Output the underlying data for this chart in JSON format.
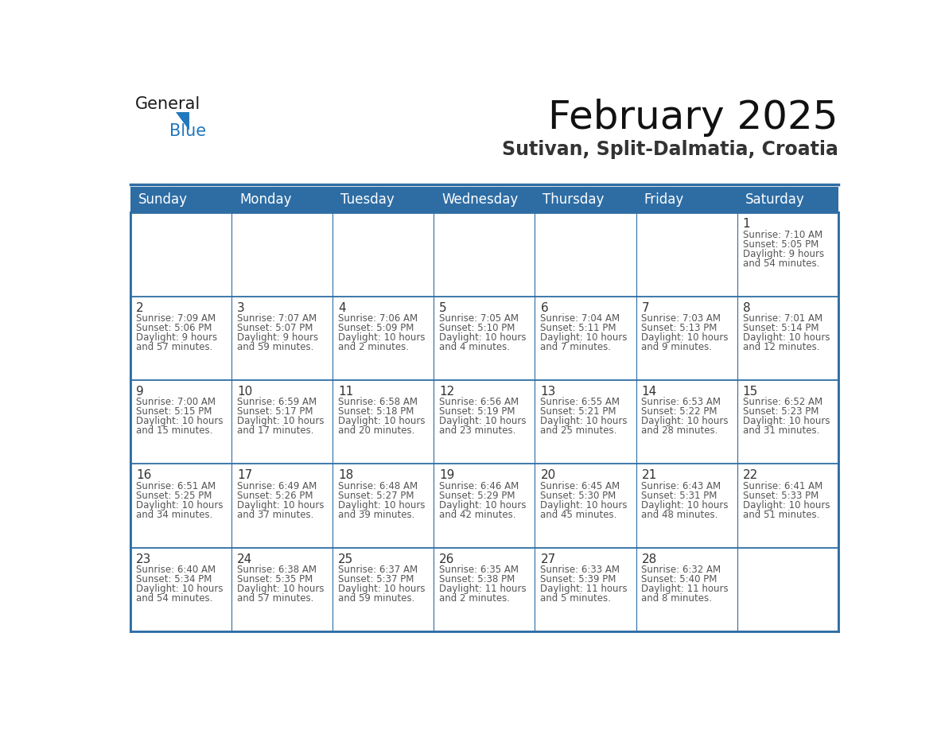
{
  "title": "February 2025",
  "subtitle": "Sutivan, Split-Dalmatia, Croatia",
  "header_bg": "#2E6DA4",
  "header_text": "#FFFFFF",
  "cell_bg": "#FFFFFF",
  "day_number_color": "#333333",
  "cell_text_color": "#555555",
  "grid_line_color": "#2E6DA4",
  "days_of_week": [
    "Sunday",
    "Monday",
    "Tuesday",
    "Wednesday",
    "Thursday",
    "Friday",
    "Saturday"
  ],
  "weeks": [
    [
      null,
      null,
      null,
      null,
      null,
      null,
      1
    ],
    [
      2,
      3,
      4,
      5,
      6,
      7,
      8
    ],
    [
      9,
      10,
      11,
      12,
      13,
      14,
      15
    ],
    [
      16,
      17,
      18,
      19,
      20,
      21,
      22
    ],
    [
      23,
      24,
      25,
      26,
      27,
      28,
      null
    ]
  ],
  "day_data": {
    "1": {
      "sunrise": "7:10 AM",
      "sunset": "5:05 PM",
      "daylight": "9 hours and 54 minutes."
    },
    "2": {
      "sunrise": "7:09 AM",
      "sunset": "5:06 PM",
      "daylight": "9 hours and 57 minutes."
    },
    "3": {
      "sunrise": "7:07 AM",
      "sunset": "5:07 PM",
      "daylight": "9 hours and 59 minutes."
    },
    "4": {
      "sunrise": "7:06 AM",
      "sunset": "5:09 PM",
      "daylight": "10 hours and 2 minutes."
    },
    "5": {
      "sunrise": "7:05 AM",
      "sunset": "5:10 PM",
      "daylight": "10 hours and 4 minutes."
    },
    "6": {
      "sunrise": "7:04 AM",
      "sunset": "5:11 PM",
      "daylight": "10 hours and 7 minutes."
    },
    "7": {
      "sunrise": "7:03 AM",
      "sunset": "5:13 PM",
      "daylight": "10 hours and 9 minutes."
    },
    "8": {
      "sunrise": "7:01 AM",
      "sunset": "5:14 PM",
      "daylight": "10 hours and 12 minutes."
    },
    "9": {
      "sunrise": "7:00 AM",
      "sunset": "5:15 PM",
      "daylight": "10 hours and 15 minutes."
    },
    "10": {
      "sunrise": "6:59 AM",
      "sunset": "5:17 PM",
      "daylight": "10 hours and 17 minutes."
    },
    "11": {
      "sunrise": "6:58 AM",
      "sunset": "5:18 PM",
      "daylight": "10 hours and 20 minutes."
    },
    "12": {
      "sunrise": "6:56 AM",
      "sunset": "5:19 PM",
      "daylight": "10 hours and 23 minutes."
    },
    "13": {
      "sunrise": "6:55 AM",
      "sunset": "5:21 PM",
      "daylight": "10 hours and 25 minutes."
    },
    "14": {
      "sunrise": "6:53 AM",
      "sunset": "5:22 PM",
      "daylight": "10 hours and 28 minutes."
    },
    "15": {
      "sunrise": "6:52 AM",
      "sunset": "5:23 PM",
      "daylight": "10 hours and 31 minutes."
    },
    "16": {
      "sunrise": "6:51 AM",
      "sunset": "5:25 PM",
      "daylight": "10 hours and 34 minutes."
    },
    "17": {
      "sunrise": "6:49 AM",
      "sunset": "5:26 PM",
      "daylight": "10 hours and 37 minutes."
    },
    "18": {
      "sunrise": "6:48 AM",
      "sunset": "5:27 PM",
      "daylight": "10 hours and 39 minutes."
    },
    "19": {
      "sunrise": "6:46 AM",
      "sunset": "5:29 PM",
      "daylight": "10 hours and 42 minutes."
    },
    "20": {
      "sunrise": "6:45 AM",
      "sunset": "5:30 PM",
      "daylight": "10 hours and 45 minutes."
    },
    "21": {
      "sunrise": "6:43 AM",
      "sunset": "5:31 PM",
      "daylight": "10 hours and 48 minutes."
    },
    "22": {
      "sunrise": "6:41 AM",
      "sunset": "5:33 PM",
      "daylight": "10 hours and 51 minutes."
    },
    "23": {
      "sunrise": "6:40 AM",
      "sunset": "5:34 PM",
      "daylight": "10 hours and 54 minutes."
    },
    "24": {
      "sunrise": "6:38 AM",
      "sunset": "5:35 PM",
      "daylight": "10 hours and 57 minutes."
    },
    "25": {
      "sunrise": "6:37 AM",
      "sunset": "5:37 PM",
      "daylight": "10 hours and 59 minutes."
    },
    "26": {
      "sunrise": "6:35 AM",
      "sunset": "5:38 PM",
      "daylight": "11 hours and 2 minutes."
    },
    "27": {
      "sunrise": "6:33 AM",
      "sunset": "5:39 PM",
      "daylight": "11 hours and 5 minutes."
    },
    "28": {
      "sunrise": "6:32 AM",
      "sunset": "5:40 PM",
      "daylight": "11 hours and 8 minutes."
    }
  },
  "logo_text_general": "General",
  "logo_text_blue": "Blue",
  "logo_color_general": "#1a1a1a",
  "logo_color_blue": "#2278BD",
  "logo_triangle_color": "#2278BD",
  "title_fontsize": 36,
  "subtitle_fontsize": 17,
  "header_fontsize": 12,
  "day_num_fontsize": 11,
  "cell_fontsize": 8.5
}
